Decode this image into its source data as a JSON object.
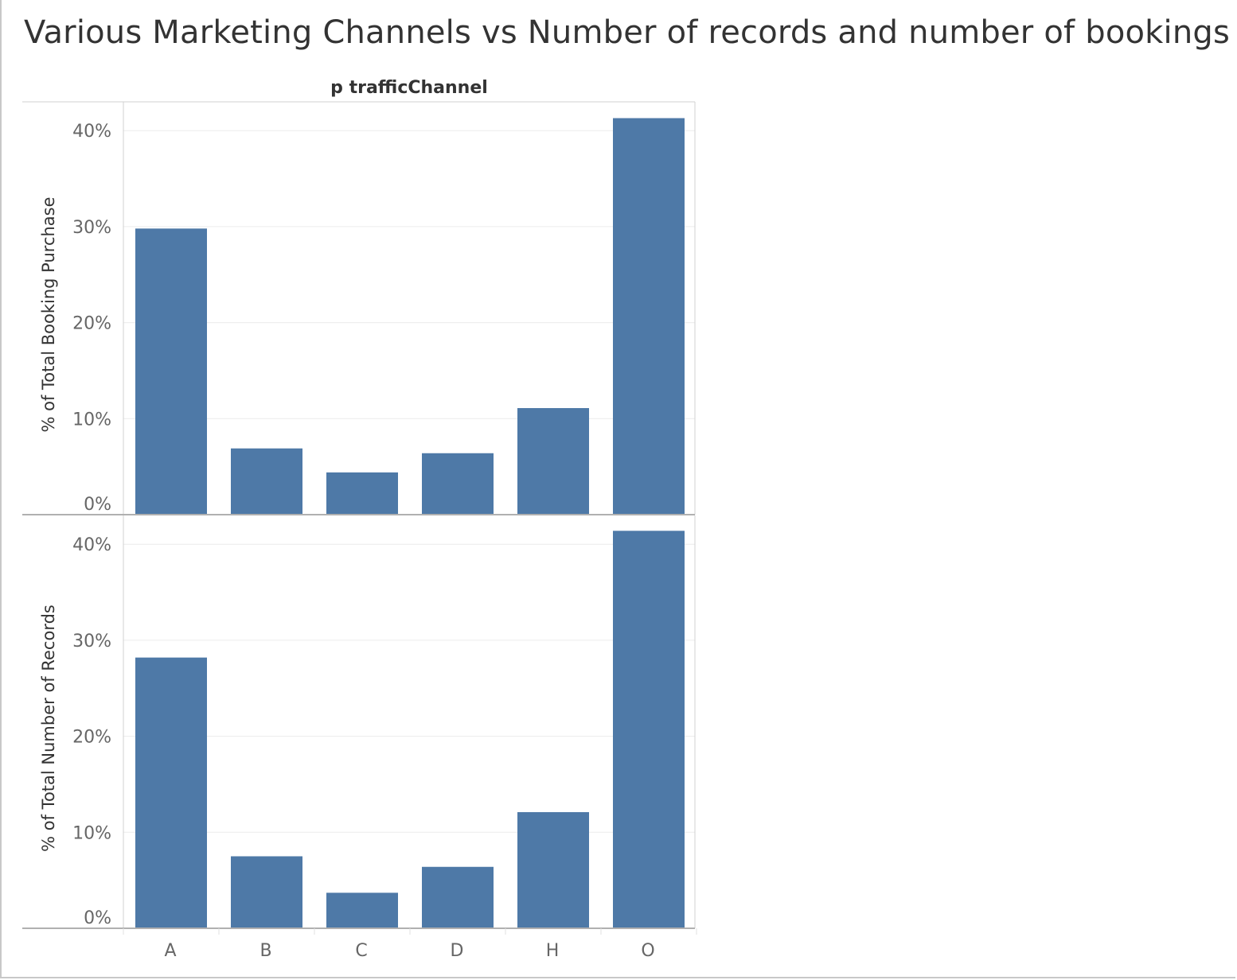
{
  "title": "Various Marketing Channels vs Number of records and number of bookings",
  "chart_data": {
    "type": "bar",
    "column_header": "p trafficChannel",
    "categories": [
      "A",
      "B",
      "C",
      "D",
      "H",
      "O"
    ],
    "bar_color": "#4e79a7",
    "panels": [
      {
        "ylabel": "% of Total Booking Purchase",
        "ylim": [
          0,
          0.43
        ],
        "yticks": [
          0,
          0.1,
          0.2,
          0.3,
          0.4
        ],
        "ytick_labels": [
          "0%",
          "10%",
          "20%",
          "30%",
          "40%"
        ],
        "values": [
          0.298,
          0.069,
          0.044,
          0.064,
          0.111,
          0.413
        ]
      },
      {
        "ylabel": "% of Total Number of Records",
        "ylim": [
          0,
          0.43
        ],
        "yticks": [
          0,
          0.1,
          0.2,
          0.3,
          0.4
        ],
        "ytick_labels": [
          "0%",
          "10%",
          "20%",
          "30%",
          "40%"
        ],
        "values": [
          0.282,
          0.075,
          0.037,
          0.064,
          0.121,
          0.414
        ]
      }
    ],
    "grid": true
  }
}
